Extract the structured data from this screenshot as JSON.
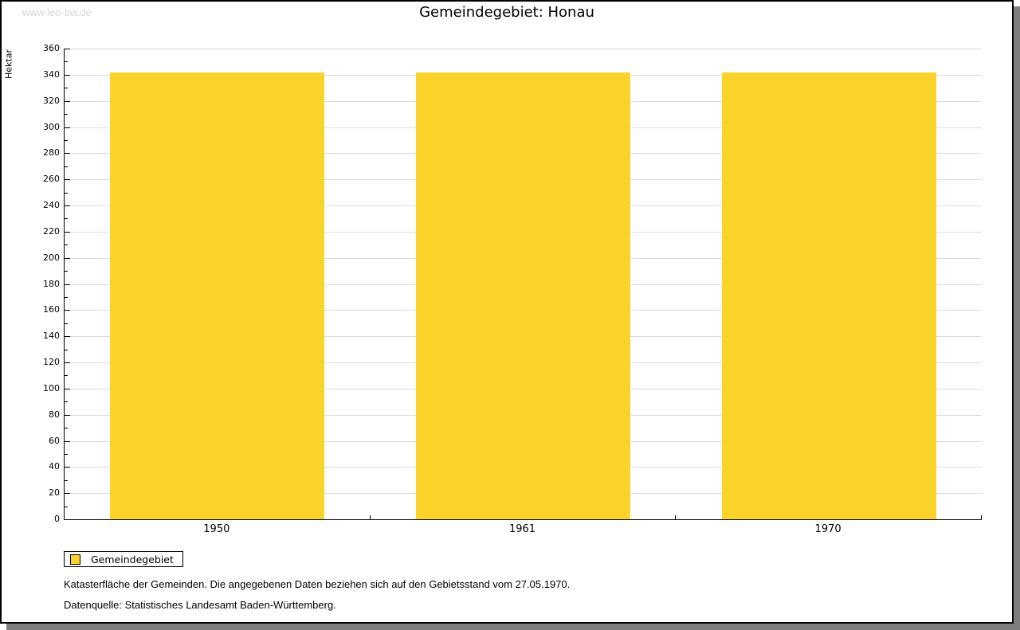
{
  "watermark": "www.leo-bw.de",
  "chart_data": {
    "type": "bar",
    "title": "Gemeindegebiet: Honau",
    "categories": [
      "1950",
      "1961",
      "1970"
    ],
    "values": [
      342,
      342,
      342
    ],
    "series_name": "Gemeindegebiet",
    "ylabel": "Hektar",
    "ylim": [
      0,
      360
    ],
    "ytick_step": 20,
    "ytick_minor_step": 10,
    "grid": true,
    "legend_position": "bottom-left",
    "bar_color": "#fcd32b",
    "grid_color": "#dcdcdc",
    "axis_color": "#000000"
  },
  "legend": {
    "items": [
      {
        "label": "Gemeindegebiet",
        "color": "#fcd32b"
      }
    ]
  },
  "footnotes": [
    "Katasterfläche der Gemeinden. Die angegebenen Daten beziehen sich auf den Gebietsstand vom 27.05.1970.",
    "Datenquelle: Statistisches Landesamt Baden-Württemberg."
  ]
}
